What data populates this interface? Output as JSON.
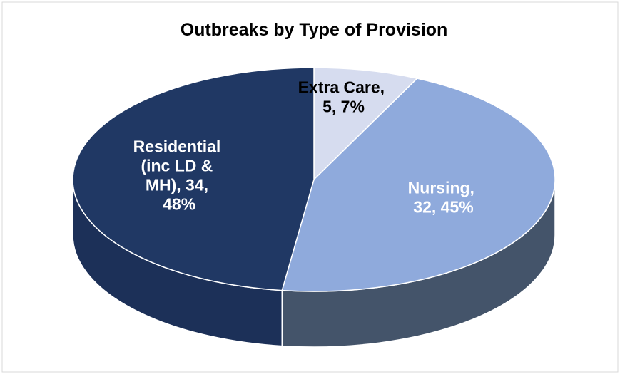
{
  "chart_data": {
    "type": "pie",
    "title": "Outbreaks by Type of Provision",
    "values": [
      5,
      32,
      34
    ],
    "value_labels": [
      "Extra Care, 5, 7%",
      "Nursing, 32, 45%",
      "Residential (inc LD & MH), 34, 48%"
    ],
    "colors": [
      "#d6dcef",
      "#8faadc",
      "#203864"
    ],
    "side_colors": [
      "#9ea6ba",
      "#44546a",
      "#1c3058"
    ],
    "label_colors": [
      "#000000",
      "#ffffff",
      "#ffffff"
    ]
  }
}
